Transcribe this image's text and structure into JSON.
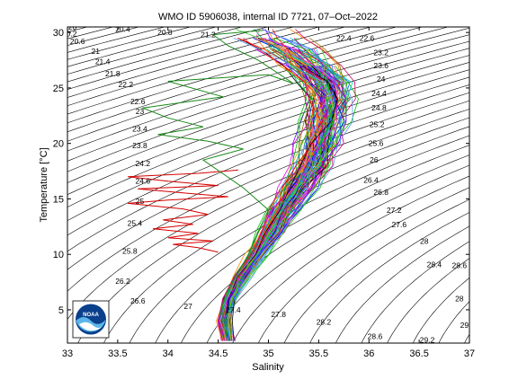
{
  "chart_data": {
    "type": "line",
    "title": "WMO ID 5906038, internal ID 7721, 07–Oct–2022",
    "xlabel": "Salinity",
    "ylabel": "Temperature [°C]",
    "xlim": [
      33,
      37
    ],
    "ylim": [
      2,
      30.5
    ],
    "x_ticks": [
      "33",
      "33.5",
      "34",
      "34.5",
      "35",
      "35.5",
      "36",
      "36.5",
      "37"
    ],
    "y_ticks": [
      "5",
      "10",
      "15",
      "20",
      "25",
      "30"
    ],
    "grid": false,
    "isopycnal_labels": [
      {
        "text": "20",
        "s": 33.05,
        "t": 30.5
      },
      {
        "text": "20.2",
        "s": 33.02,
        "t": 29.9
      },
      {
        "text": "20.6",
        "s": 33.1,
        "t": 29.2
      },
      {
        "text": "20.4",
        "s": 33.55,
        "t": 30.3
      },
      {
        "text": "20.8",
        "s": 33.97,
        "t": 30.0
      },
      {
        "text": "21.2",
        "s": 34.4,
        "t": 29.8
      },
      {
        "text": "21",
        "s": 33.28,
        "t": 28.3
      },
      {
        "text": "21.4",
        "s": 33.35,
        "t": 27.4
      },
      {
        "text": "21.8",
        "s": 33.45,
        "t": 26.3
      },
      {
        "text": "22.2",
        "s": 33.58,
        "t": 25.3
      },
      {
        "text": "22.6",
        "s": 33.7,
        "t": 23.8
      },
      {
        "text": "23",
        "s": 33.72,
        "t": 22.9
      },
      {
        "text": "23.4",
        "s": 33.72,
        "t": 21.3
      },
      {
        "text": "23.8",
        "s": 33.72,
        "t": 19.8
      },
      {
        "text": "24.2",
        "s": 33.75,
        "t": 18.2
      },
      {
        "text": "24.6",
        "s": 33.75,
        "t": 16.6
      },
      {
        "text": "25",
        "s": 33.72,
        "t": 14.8
      },
      {
        "text": "25.4",
        "s": 33.67,
        "t": 12.8
      },
      {
        "text": "25.8",
        "s": 33.62,
        "t": 10.3
      },
      {
        "text": "26.2",
        "s": 33.55,
        "t": 7.6
      },
      {
        "text": "26.6",
        "s": 33.7,
        "t": 5.8
      },
      {
        "text": "27",
        "s": 34.2,
        "t": 5.3
      },
      {
        "text": "27.4",
        "s": 34.65,
        "t": 5.0
      },
      {
        "text": "27.8",
        "s": 35.1,
        "t": 4.6
      },
      {
        "text": "28.2",
        "s": 35.55,
        "t": 3.9
      },
      {
        "text": "28.6",
        "s": 36.06,
        "t": 2.6
      },
      {
        "text": "29.2",
        "s": 36.58,
        "t": 2.3
      },
      {
        "text": "29",
        "s": 36.95,
        "t": 3.6
      },
      {
        "text": "28",
        "s": 36.9,
        "t": 6.0
      },
      {
        "text": "28.6",
        "s": 36.9,
        "t": 9.0
      },
      {
        "text": "28.4",
        "s": 36.65,
        "t": 9.1
      },
      {
        "text": "28",
        "s": 36.55,
        "t": 11.2
      },
      {
        "text": "27.6",
        "s": 36.3,
        "t": 12.7
      },
      {
        "text": "27.2",
        "s": 36.25,
        "t": 14.0
      },
      {
        "text": "26.8",
        "s": 36.12,
        "t": 15.6
      },
      {
        "text": "26.4",
        "s": 36.02,
        "t": 16.7
      },
      {
        "text": "26",
        "s": 36.05,
        "t": 18.5
      },
      {
        "text": "25.6",
        "s": 36.07,
        "t": 20.0
      },
      {
        "text": "25.2",
        "s": 36.08,
        "t": 21.7
      },
      {
        "text": "24.8",
        "s": 36.1,
        "t": 23.2
      },
      {
        "text": "24.4",
        "s": 36.1,
        "t": 24.5
      },
      {
        "text": "24",
        "s": 36.12,
        "t": 25.8
      },
      {
        "text": "23.6",
        "s": 36.12,
        "t": 27.0
      },
      {
        "text": "23.2",
        "s": 36.12,
        "t": 28.2
      },
      {
        "text": "22.6",
        "s": 35.98,
        "t": 29.5
      },
      {
        "text": "22.4",
        "s": 35.75,
        "t": 29.5
      }
    ],
    "series": [
      {
        "color": "#d40000",
        "points": [
          [
            34.5,
            10.2
          ],
          [
            34.3,
            10.6
          ],
          [
            34.05,
            10.9
          ],
          [
            34.45,
            11.2
          ],
          [
            34.0,
            11.5
          ],
          [
            34.3,
            11.9
          ],
          [
            33.85,
            12.3
          ],
          [
            34.25,
            12.7
          ],
          [
            33.95,
            13.1
          ],
          [
            34.4,
            13.6
          ],
          [
            34.15,
            14.1
          ],
          [
            33.6,
            14.6
          ],
          [
            34.0,
            14.9
          ],
          [
            34.6,
            15.2
          ],
          [
            34.2,
            15.5
          ],
          [
            33.7,
            15.9
          ],
          [
            34.5,
            16.2
          ],
          [
            34.0,
            16.6
          ],
          [
            33.6,
            17.0
          ],
          [
            34.3,
            17.3
          ],
          [
            34.7,
            17.6
          ]
        ]
      },
      {
        "color": "#1a8a1a",
        "points": [
          [
            34.58,
            3.5
          ],
          [
            34.53,
            5.0
          ],
          [
            34.58,
            6.5
          ],
          [
            34.68,
            8.0
          ],
          [
            34.8,
            10.0
          ],
          [
            34.92,
            12.5
          ],
          [
            35.0,
            14.0
          ],
          [
            34.75,
            16.0
          ],
          [
            34.35,
            18.5
          ],
          [
            34.75,
            19.5
          ],
          [
            34.4,
            20.2
          ],
          [
            33.9,
            20.8
          ],
          [
            34.35,
            21.5
          ],
          [
            34.0,
            22.3
          ],
          [
            33.75,
            23.2
          ],
          [
            34.55,
            24.2
          ],
          [
            34.0,
            25.6
          ],
          [
            35.0,
            26.2
          ],
          [
            35.25,
            25.4
          ],
          [
            34.9,
            27.5
          ],
          [
            34.6,
            28.8
          ],
          [
            34.45,
            29.8
          ],
          [
            34.95,
            30.2
          ]
        ]
      }
    ]
  },
  "logo": {
    "text": "NOAA"
  }
}
